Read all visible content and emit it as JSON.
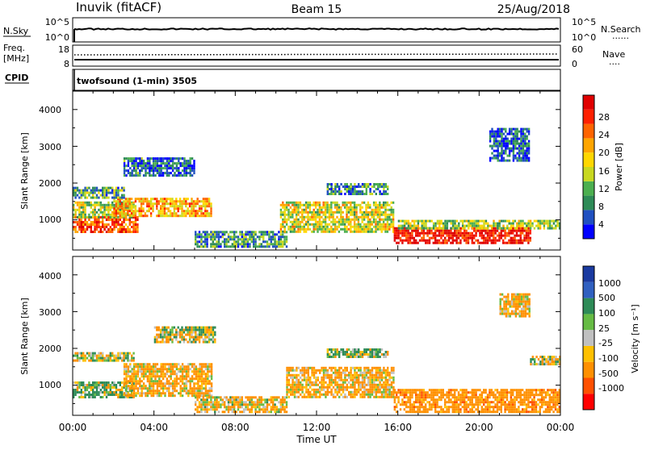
{
  "header": {
    "station": "Inuvik  (fitACF)",
    "beam": "Beam 15",
    "date": "25/Aug/2018"
  },
  "noise_panel": {
    "left_label": "N.Sky",
    "left_ticks": [
      "10^5",
      "10^0"
    ],
    "right_ticks": [
      "10^5",
      "10^0"
    ],
    "right_label": "N.Search",
    "right_legend_dots": "......"
  },
  "freq_panel": {
    "left_label_line1": "Freq.",
    "left_label_line2": "[MHz]",
    "left_ticks": [
      "18",
      "8"
    ],
    "right_ticks": [
      "60",
      "0"
    ],
    "right_label": "Nave",
    "right_legend_dots": "...."
  },
  "cpid": {
    "label": "CPID",
    "mode": "twofsound (1-min) 3505"
  },
  "power_panel": {
    "ylabel": "Slant Range [km]",
    "y_ticks": [
      "4000",
      "3000",
      "2000",
      "1000"
    ],
    "colorbar_label": "Power [dB]",
    "colorbar_ticks": [
      "28",
      "24",
      "20",
      "16",
      "12",
      "8",
      "4"
    ],
    "colors": [
      "#0000ff",
      "#2050c0",
      "#2e8b57",
      "#4caf50",
      "#c8d820",
      "#ffd700",
      "#ffa500",
      "#ff6400",
      "#ff2000",
      "#e00000"
    ]
  },
  "velocity_panel": {
    "ylabel": "Slant Range [km]",
    "y_ticks": [
      "4000",
      "3000",
      "2000",
      "1000"
    ],
    "colorbar_label": "Velocity  [m s⁻¹]",
    "colorbar_ticks": [
      "1000",
      "500",
      "100",
      "25",
      "-25",
      "-100",
      "-500",
      "-1000"
    ],
    "colors": [
      "#1a3aa0",
      "#3060c0",
      "#2e8b57",
      "#66bb44",
      "#c0c0c0",
      "#ffc000",
      "#ff9000",
      "#ff5000",
      "#ff0000"
    ]
  },
  "x_axis": {
    "ticks": [
      "00:00",
      "04:00",
      "08:00",
      "12:00",
      "16:00",
      "20:00",
      "00:00"
    ],
    "label": "Time UT"
  },
  "chart_data": [
    {
      "type": "heatmap",
      "title": "Power [dB]",
      "x_range_hours": [
        0,
        24
      ],
      "y_range_km": [
        180,
        4500
      ],
      "colorbar_range": [
        0,
        32
      ],
      "regions": [
        {
          "t0": 0.0,
          "t1": 3.2,
          "r0": 700,
          "r1": 1100,
          "value": 26
        },
        {
          "t0": 0.0,
          "t1": 3.0,
          "r0": 1100,
          "r1": 1500,
          "value": 14
        },
        {
          "t0": 2.0,
          "t1": 6.8,
          "r0": 1100,
          "r1": 1600,
          "value": 20
        },
        {
          "t0": 0.0,
          "t1": 2.5,
          "r0": 1600,
          "r1": 1900,
          "value": 10
        },
        {
          "t0": 2.5,
          "t1": 6.0,
          "r0": 2200,
          "r1": 2700,
          "value": 6
        },
        {
          "t0": 6.0,
          "t1": 10.5,
          "r0": 300,
          "r1": 700,
          "value": 9
        },
        {
          "t0": 10.2,
          "t1": 15.8,
          "r0": 700,
          "r1": 1500,
          "value": 16
        },
        {
          "t0": 12.5,
          "t1": 15.5,
          "r0": 1700,
          "r1": 2000,
          "value": 8
        },
        {
          "t0": 15.8,
          "t1": 22.5,
          "r0": 350,
          "r1": 800,
          "value": 30
        },
        {
          "t0": 16.0,
          "t1": 24.0,
          "r0": 800,
          "r1": 1000,
          "value": 14
        },
        {
          "t0": 20.5,
          "t1": 22.5,
          "r0": 2600,
          "r1": 3500,
          "value": 5
        }
      ]
    },
    {
      "type": "heatmap",
      "title": "Velocity [m s-1]",
      "x_range_hours": [
        0,
        24
      ],
      "y_range_km": [
        180,
        4500
      ],
      "colorbar_ticks": [
        1000,
        500,
        100,
        25,
        -25,
        -100,
        -500,
        -1000
      ],
      "regions": [
        {
          "t0": 0.0,
          "t1": 3.0,
          "r0": 1700,
          "r1": 1900,
          "value": 0
        },
        {
          "t0": 0.0,
          "t1": 3.0,
          "r0": 700,
          "r1": 1100,
          "value": 100
        },
        {
          "t0": 2.5,
          "t1": 6.8,
          "r0": 700,
          "r1": 1600,
          "value": -150
        },
        {
          "t0": 4.0,
          "t1": 7.0,
          "r0": 2200,
          "r1": 2600,
          "value": 0
        },
        {
          "t0": 6.0,
          "t1": 10.5,
          "r0": 300,
          "r1": 700,
          "value": -120
        },
        {
          "t0": 10.5,
          "t1": 15.8,
          "r0": 700,
          "r1": 1500,
          "value": -150
        },
        {
          "t0": 12.5,
          "t1": 15.5,
          "r0": 1800,
          "r1": 2000,
          "value": 50
        },
        {
          "t0": 15.8,
          "t1": 24.0,
          "r0": 300,
          "r1": 900,
          "value": -300
        },
        {
          "t0": 21.0,
          "t1": 22.5,
          "r0": 2900,
          "r1": 3500,
          "value": -150
        },
        {
          "t0": 22.5,
          "t1": 24.0,
          "r0": 1600,
          "r1": 1800,
          "value": 0
        }
      ]
    }
  ]
}
